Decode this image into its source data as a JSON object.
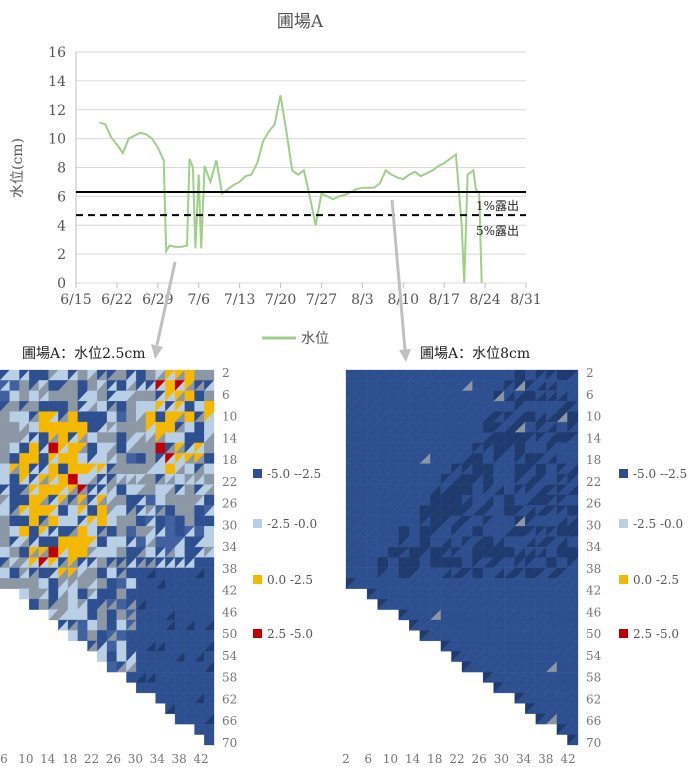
{
  "title": "圃場A",
  "line_chart": {
    "ylabel": "水位(cm)",
    "legend_label": "水位",
    "line_color": "#9fd08a",
    "threshold_1_label": "1%露出",
    "threshold_5_label": "5%露出",
    "x_ticks": [
      "6/15",
      "6/22",
      "6/29",
      "7/6",
      "7/13",
      "7/20",
      "7/27",
      "8/3",
      "8/10",
      "8/17",
      "8/24",
      "8/31"
    ],
    "y_ticks": [
      "0",
      "2",
      "4",
      "6",
      "8",
      "10",
      "12",
      "14",
      "16"
    ]
  },
  "heatmap_left": {
    "title": "圃場A：水位2.5cm"
  },
  "heatmap_right": {
    "title": "圃場A：水位8cm"
  },
  "heatmap_y_ticks": [
    "2",
    "6",
    "10",
    "14",
    "18",
    "22",
    "26",
    "30",
    "34",
    "38",
    "42",
    "46",
    "50",
    "54",
    "58",
    "62",
    "66",
    "70"
  ],
  "heatmap_left_x_ticks": [
    "6",
    "10",
    "14",
    "18",
    "22",
    "26",
    "30",
    "34",
    "38",
    "42"
  ],
  "heatmap_right_x_ticks": [
    "2",
    "6",
    "10",
    "14",
    "18",
    "22",
    "26",
    "30",
    "34",
    "38",
    "42"
  ],
  "legend_items": [
    {
      "label": "-5.0 --2.5",
      "color": "#2e4f8f"
    },
    {
      "label": "-2.5 -0.0",
      "color": "#b8cfe6"
    },
    {
      "label": "0.0 -2.5",
      "color": "#f5b800"
    },
    {
      "label": "2.5 -5.0",
      "color": "#c00000"
    }
  ],
  "chart_data": [
    {
      "type": "line",
      "title": "圃場A",
      "xlabel": "",
      "ylabel": "水位(cm)",
      "ylim": [
        0,
        16
      ],
      "x_range": [
        "6/15",
        "8/31"
      ],
      "series": [
        {
          "name": "水位",
          "x": [
            "6/19",
            "6/20",
            "6/21",
            "6/22",
            "6/23",
            "6/24",
            "6/25",
            "6/26",
            "6/27",
            "6/28",
            "6/29",
            "6/30",
            "6/30",
            "7/1",
            "7/2",
            "7/3",
            "7/4",
            "7/4",
            "7/5",
            "7/5",
            "7/6",
            "7/6",
            "7/7",
            "7/8",
            "7/9",
            "7/10",
            "7/11",
            "7/12",
            "7/13",
            "7/14",
            "7/15",
            "7/16",
            "7/17",
            "7/18",
            "7/19",
            "7/20",
            "7/21",
            "7/22",
            "7/23",
            "7/24",
            "7/25",
            "7/26",
            "7/27",
            "7/28",
            "7/29",
            "7/30",
            "7/31",
            "8/1",
            "8/2",
            "8/3",
            "8/4",
            "8/5",
            "8/6",
            "8/7",
            "8/8",
            "8/9",
            "8/10",
            "8/11",
            "8/12",
            "8/13",
            "8/14",
            "8/15",
            "8/16",
            "8/17",
            "8/18",
            "8/19",
            "8/20",
            "8/20",
            "8/21",
            "8/22",
            "8/22",
            "8/23",
            "8/23"
          ],
          "y": [
            11.1,
            11.0,
            10.1,
            9.6,
            9.0,
            10.0,
            10.2,
            10.4,
            10.3,
            10.0,
            9.4,
            8.5,
            2.2,
            2.6,
            2.5,
            2.5,
            2.6,
            8.6,
            8.0,
            2.4,
            7.5,
            2.4,
            8.1,
            7.0,
            8.5,
            6.2,
            6.5,
            6.8,
            7.0,
            7.4,
            7.5,
            8.3,
            9.8,
            10.5,
            11.0,
            13.0,
            10.5,
            7.8,
            7.5,
            7.8,
            6.0,
            4.0,
            6.2,
            6.0,
            5.8,
            6.0,
            6.1,
            6.3,
            6.5,
            6.6,
            6.6,
            6.6,
            6.9,
            7.8,
            7.5,
            7.3,
            7.2,
            7.5,
            7.7,
            7.4,
            7.6,
            7.8,
            8.1,
            8.3,
            8.6,
            8.9,
            4.0,
            0.0,
            7.5,
            7.8,
            6.5,
            6.2,
            0.0
          ]
        }
      ],
      "reference_lines": [
        {
          "label": "1%露出",
          "y": 6.3,
          "style": "solid"
        },
        {
          "label": "5%露出",
          "y": 4.7,
          "style": "dashed"
        }
      ]
    },
    {
      "type": "heatmap",
      "title": "圃場A：水位2.5cm",
      "y_ticks": [
        2,
        6,
        10,
        14,
        18,
        22,
        26,
        30,
        34,
        38,
        42,
        46,
        50,
        54,
        58,
        62,
        66,
        70
      ],
      "x_ticks": [
        6,
        10,
        14,
        18,
        22,
        26,
        30,
        34,
        38,
        42
      ],
      "legend": [
        "-5.0 --2.5",
        "-2.5 -0.0",
        "0.0 -2.5",
        "2.5 -5.0"
      ]
    },
    {
      "type": "heatmap",
      "title": "圃場A：水位8cm",
      "y_ticks": [
        2,
        6,
        10,
        14,
        18,
        22,
        26,
        30,
        34,
        38,
        42,
        46,
        50,
        54,
        58,
        62,
        66,
        70
      ],
      "x_ticks": [
        2,
        6,
        10,
        14,
        18,
        22,
        26,
        30,
        34,
        38,
        42
      ],
      "legend": [
        "-5.0 --2.5",
        "-2.5 -0.0",
        "0.0 -2.5",
        "2.5 -5.0"
      ]
    }
  ]
}
